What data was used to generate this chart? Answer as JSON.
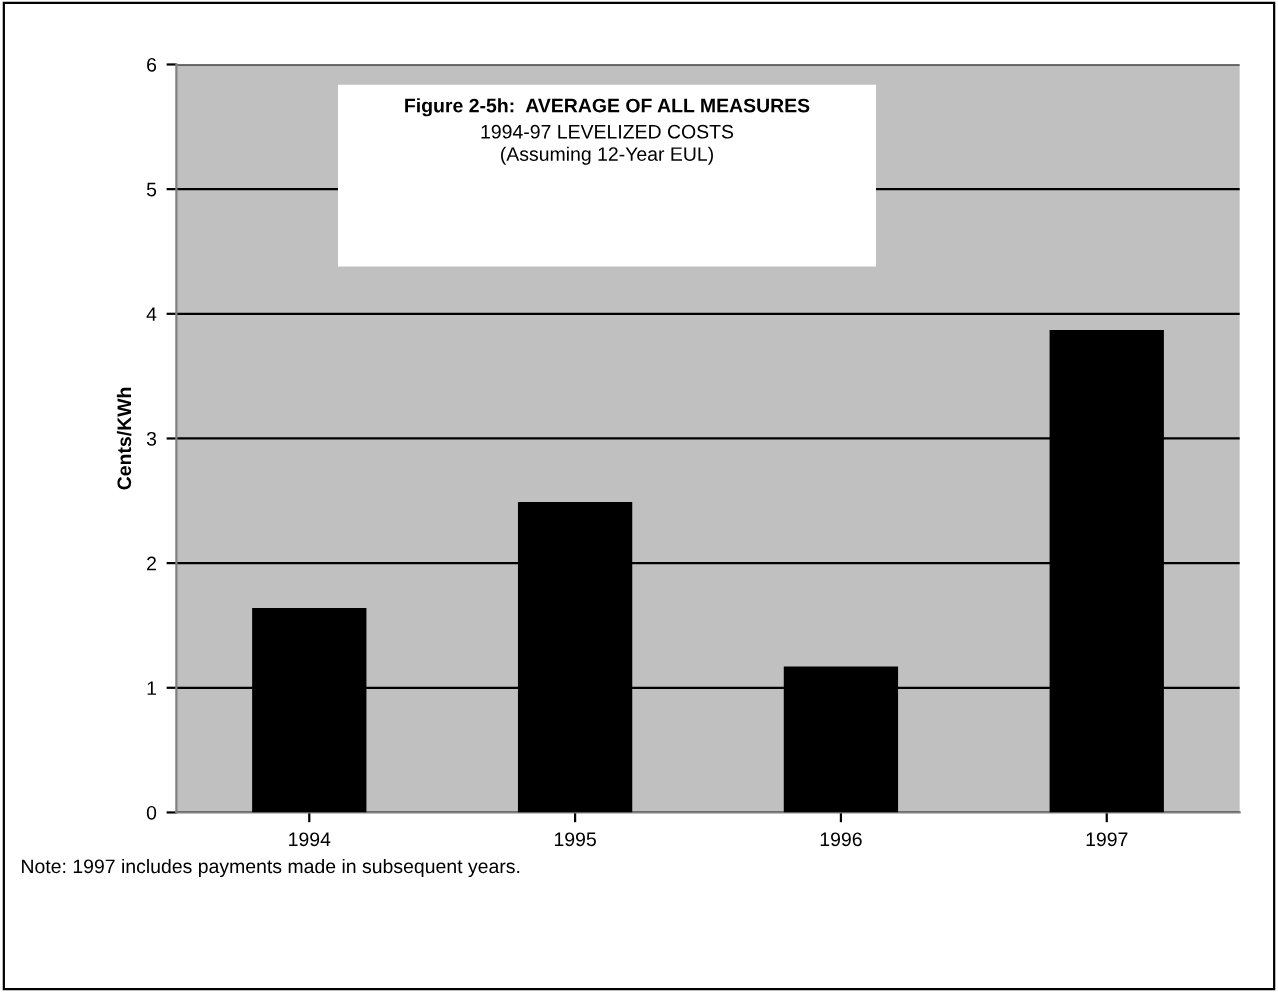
{
  "chart_data": {
    "type": "bar",
    "title": "Figure 2-5h:  AVERAGE OF ALL MEASURES",
    "subtitle": "1994-97 LEVELIZED COSTS\n(Assuming 12-Year EUL)",
    "ylabel": "Cents/KWh",
    "categories": [
      "1994",
      "1995",
      "1996",
      "1997"
    ],
    "values": [
      1.64,
      2.49,
      1.17,
      3.87
    ],
    "color": "#000000",
    "ylim": [
      0,
      6
    ],
    "yticks": [
      0,
      1,
      2,
      3,
      4,
      5,
      6
    ],
    "grid": "y",
    "annotations": [
      "Note: 1997 includes payments made in subsequent years."
    ]
  }
}
